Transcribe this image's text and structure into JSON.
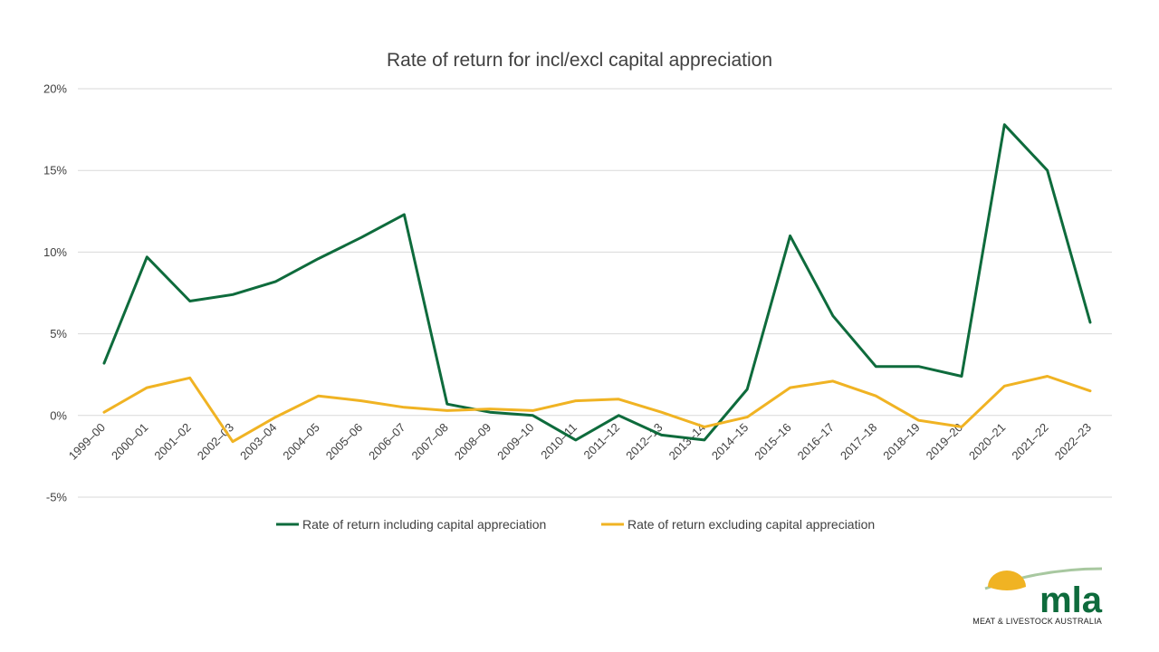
{
  "chart_data": {
    "type": "line",
    "title": "Rate of return for incl/excl capital appreciation",
    "xlabel": "",
    "ylabel": "",
    "ylim": [
      -5,
      20
    ],
    "yticks": [
      -5,
      0,
      5,
      10,
      15,
      20
    ],
    "ytick_labels": [
      "-5%",
      "0%",
      "5%",
      "10%",
      "15%",
      "20%"
    ],
    "grid": true,
    "legend_position": "bottom",
    "categories": [
      "1999–00",
      "2000–01",
      "2001–02",
      "2002–03",
      "2003–04",
      "2004–05",
      "2005–06",
      "2006–07",
      "2007–08",
      "2008–09",
      "2009–10",
      "2010–11",
      "2011–12",
      "2012–13",
      "2013–14",
      "2014–15",
      "2015–16",
      "2016–17",
      "2017–18",
      "2018–19",
      "2019–20",
      "2020–21",
      "2021–22",
      "2022–23"
    ],
    "series": [
      {
        "name": "Rate of return including capital appreciation",
        "color": "#0e6b3c",
        "values": [
          3.2,
          9.7,
          7.0,
          7.4,
          8.2,
          9.6,
          10.9,
          12.3,
          0.7,
          0.2,
          0.0,
          -1.5,
          0.0,
          -1.2,
          -1.5,
          1.6,
          11.0,
          6.1,
          3.0,
          3.0,
          2.4,
          17.8,
          15.0,
          5.7
        ]
      },
      {
        "name": "Rate of return excluding capital appreciation",
        "color": "#f0b323",
        "values": [
          0.2,
          1.7,
          2.3,
          -1.6,
          -0.1,
          1.2,
          0.9,
          0.5,
          0.3,
          0.4,
          0.3,
          0.9,
          1.0,
          0.2,
          -0.7,
          -0.1,
          1.7,
          2.1,
          1.2,
          -0.3,
          -0.7,
          1.8,
          2.4,
          1.5
        ]
      }
    ]
  },
  "logo": {
    "wordmark": "mla",
    "tagline": "MEAT & LIVESTOCK AUSTRALIA",
    "sun_color": "#f0b323",
    "wordmark_color": "#0e6b3c",
    "arc_color": "#a8c8a0"
  }
}
